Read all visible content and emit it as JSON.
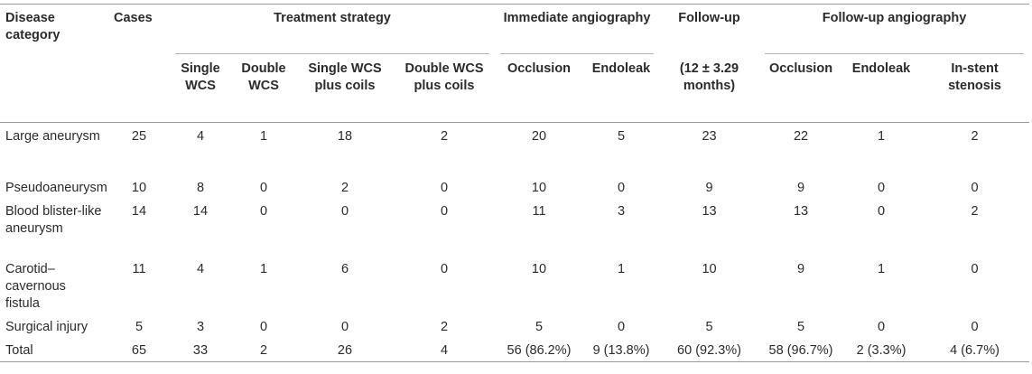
{
  "headers": {
    "disease_category": "Disease category",
    "cases": "Cases",
    "treatment_strategy": "Treatment strategy",
    "immediate_angiography": "Immediate angiography",
    "follow_up": "Follow-up",
    "follow_up_angiography": "Follow-up angiography",
    "single_wcs": "Single WCS",
    "double_wcs": "Double WCS",
    "single_wcs_plus_coils": "Single WCS plus coils",
    "double_wcs_plus_coils": "Double WCS plus coils",
    "imm_occlusion": "Occlusion",
    "imm_endoleak": "Endoleak",
    "follow_up_period": "(12 ± 3.29 months)",
    "fu_occlusion": "Occlusion",
    "fu_endoleak": "Endoleak",
    "in_stent_stenosis": "In-stent stenosis"
  },
  "rows": [
    {
      "category": "Large aneurysm",
      "cases": "25",
      "single_wcs": "4",
      "double_wcs": "1",
      "single_wcs_coils": "18",
      "double_wcs_coils": "2",
      "imm_occlusion": "20",
      "imm_endoleak": "5",
      "follow_up": "23",
      "fu_occlusion": "22",
      "fu_endoleak": "1",
      "in_stent_stenosis": "2"
    },
    {
      "category": "Pseudoaneurysm",
      "cases": "10",
      "single_wcs": "8",
      "double_wcs": "0",
      "single_wcs_coils": "2",
      "double_wcs_coils": "0",
      "imm_occlusion": "10",
      "imm_endoleak": "0",
      "follow_up": "9",
      "fu_occlusion": "9",
      "fu_endoleak": "0",
      "in_stent_stenosis": "0"
    },
    {
      "category": "Blood blister-like aneurysm",
      "cases": "14",
      "single_wcs": "14",
      "double_wcs": "0",
      "single_wcs_coils": "0",
      "double_wcs_coils": "0",
      "imm_occlusion": "11",
      "imm_endoleak": "3",
      "follow_up": "13",
      "fu_occlusion": "13",
      "fu_endoleak": "0",
      "in_stent_stenosis": "2"
    },
    {
      "category": "Carotid–cavernous fistula",
      "cases": "11",
      "single_wcs": "4",
      "double_wcs": "1",
      "single_wcs_coils": "6",
      "double_wcs_coils": "0",
      "imm_occlusion": "10",
      "imm_endoleak": "1",
      "follow_up": "10",
      "fu_occlusion": "9",
      "fu_endoleak": "1",
      "in_stent_stenosis": "0"
    },
    {
      "category": "Surgical injury",
      "cases": "5",
      "single_wcs": "3",
      "double_wcs": "0",
      "single_wcs_coils": "0",
      "double_wcs_coils": "2",
      "imm_occlusion": "5",
      "imm_endoleak": "0",
      "follow_up": "5",
      "fu_occlusion": "5",
      "fu_endoleak": "0",
      "in_stent_stenosis": "0"
    },
    {
      "category": "Total",
      "cases": "65",
      "single_wcs": "33",
      "double_wcs": "2",
      "single_wcs_coils": "26",
      "double_wcs_coils": "4",
      "imm_occlusion": "56 (86.2%)",
      "imm_endoleak": "9 (13.8%)",
      "follow_up": "60 (92.3%)",
      "fu_occlusion": "58 (96.7%)",
      "fu_endoleak": "2 (3.3%)",
      "in_stent_stenosis": "4 (6.7%)"
    }
  ]
}
